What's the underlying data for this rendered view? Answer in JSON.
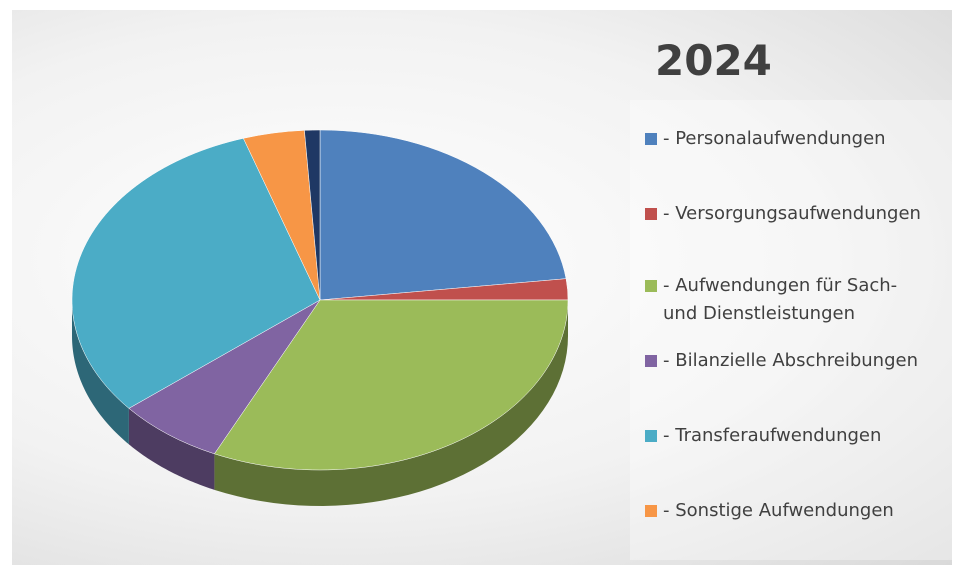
{
  "chart_data": {
    "type": "pie",
    "title": "2024",
    "categories": [
      "- Personalaufwendungen",
      "- Versorgungsaufwendungen",
      "- Aufwendungen für Sach- und Dienstleistungen",
      "- Bilanzielle Abschreibungen",
      "- Transferaufwendungen",
      "- Sonstige Aufwendungen",
      null
    ],
    "values": [
      23,
      2,
      32,
      7,
      31,
      4,
      1
    ],
    "colors": [
      "#4f81bd",
      "#c0504d",
      "#9bbb59",
      "#8064a2",
      "#4bacc6",
      "#f79646",
      "#1f3864"
    ],
    "legend": "right"
  }
}
